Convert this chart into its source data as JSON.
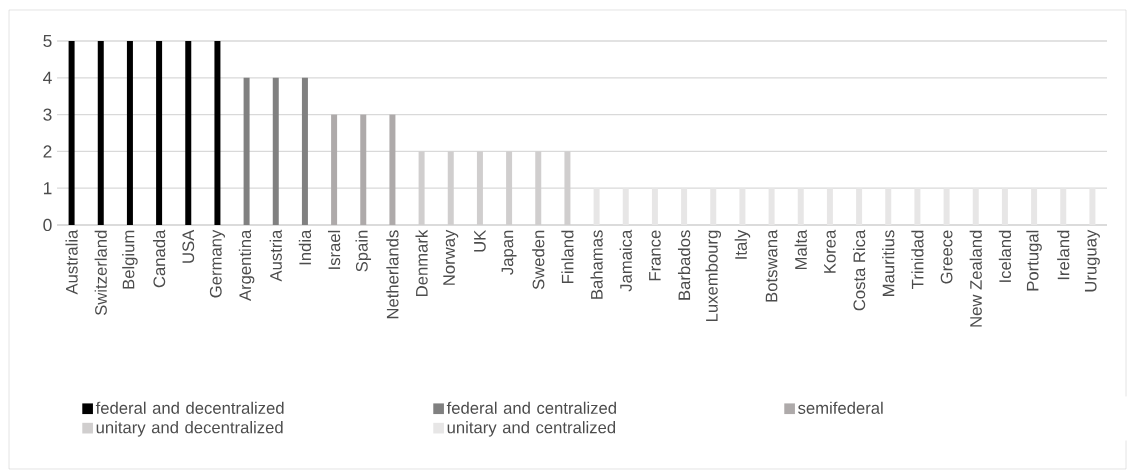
{
  "chart_data": {
    "type": "bar",
    "categories": [
      "Australia",
      "Switzerland",
      "Belgium",
      "Canada",
      "USA",
      "Germany",
      "Argentina",
      "Austria",
      "India",
      "Israel",
      "Spain",
      "Netherlands",
      "Denmark",
      "Norway",
      "UK",
      "Japan",
      "Sweden",
      "Finland",
      "Bahamas",
      "Jamaica",
      "France",
      "Barbados",
      "Luxembourg",
      "Italy",
      "Botswana",
      "Malta",
      "Korea",
      "Costa Rica",
      "Mauritius",
      "Trinidad",
      "Greece",
      "New Zealand",
      "Iceland",
      "Portugal",
      "Ireland",
      "Uruguay"
    ],
    "series": [
      {
        "name": "federal and decentralized",
        "color": "#000000",
        "values": [
          5,
          5,
          5,
          5,
          5,
          5,
          null,
          null,
          null,
          null,
          null,
          null,
          null,
          null,
          null,
          null,
          null,
          null,
          null,
          null,
          null,
          null,
          null,
          null,
          null,
          null,
          null,
          null,
          null,
          null,
          null,
          null,
          null,
          null,
          null,
          null
        ]
      },
      {
        "name": "federal and centralized",
        "color": "#808080",
        "values": [
          null,
          null,
          null,
          null,
          null,
          null,
          4,
          4,
          4,
          null,
          null,
          null,
          null,
          null,
          null,
          null,
          null,
          null,
          null,
          null,
          null,
          null,
          null,
          null,
          null,
          null,
          null,
          null,
          null,
          null,
          null,
          null,
          null,
          null,
          null,
          null
        ]
      },
      {
        "name": "semifederal",
        "color": "#aeaaaa",
        "values": [
          null,
          null,
          null,
          null,
          null,
          null,
          null,
          null,
          null,
          3,
          3,
          3,
          null,
          null,
          null,
          null,
          null,
          null,
          null,
          null,
          null,
          null,
          null,
          null,
          null,
          null,
          null,
          null,
          null,
          null,
          null,
          null,
          null,
          null,
          null,
          null
        ]
      },
      {
        "name": "unitary and decentralized",
        "color": "#d0cece",
        "values": [
          null,
          null,
          null,
          null,
          null,
          null,
          null,
          null,
          null,
          null,
          null,
          null,
          2,
          2,
          2,
          2,
          2,
          2,
          null,
          null,
          null,
          null,
          null,
          null,
          null,
          null,
          null,
          null,
          null,
          null,
          null,
          null,
          null,
          null,
          null,
          null
        ]
      },
      {
        "name": "unitary and centralized",
        "color": "#e7e6e6",
        "values": [
          null,
          null,
          null,
          null,
          null,
          null,
          null,
          null,
          null,
          null,
          null,
          null,
          null,
          null,
          null,
          null,
          null,
          null,
          1,
          1,
          1,
          1,
          1,
          1,
          1,
          1,
          1,
          1,
          1,
          1,
          1,
          1,
          1,
          1,
          1,
          1
        ]
      }
    ],
    "ylim": [
      0,
      5
    ],
    "yticks": [
      0,
      1,
      2,
      3,
      4,
      5
    ],
    "grid": "y",
    "legend": "bottom"
  }
}
